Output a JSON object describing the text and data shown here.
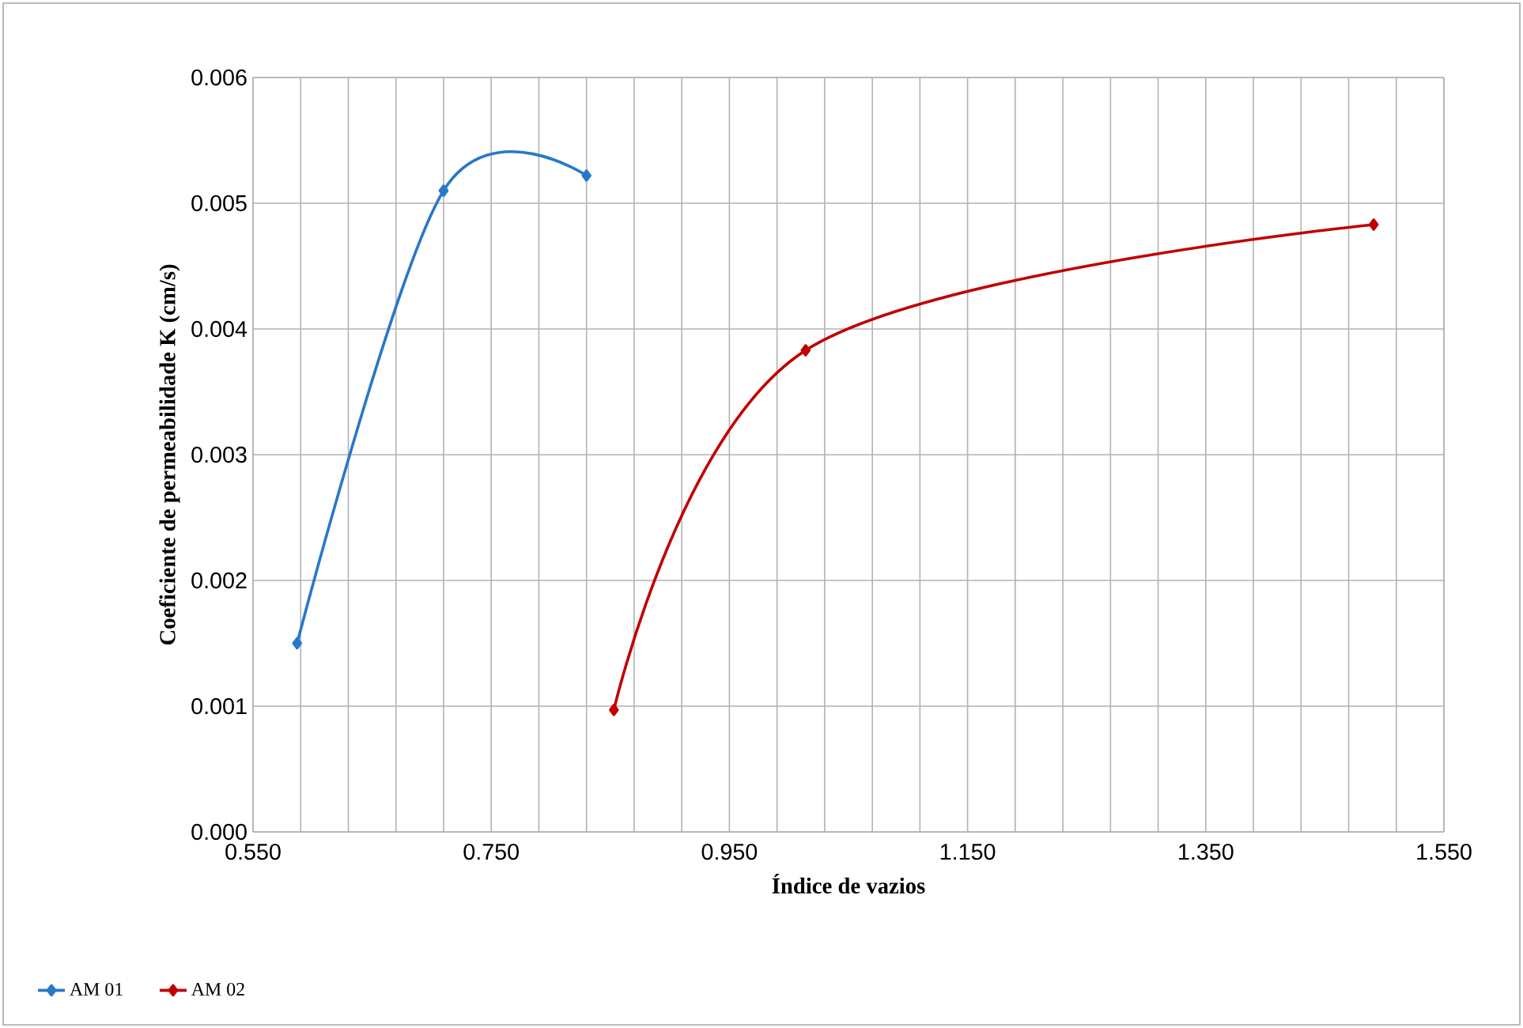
{
  "chart_data": {
    "type": "line",
    "xlabel": "Índice de vazios",
    "ylabel": "Coeficiente de permeabilidade K (cm/s)",
    "series": [
      {
        "name": "AM 01",
        "color": "#2878c8",
        "x": [
          0.587,
          0.71,
          0.83
        ],
        "values": [
          0.0015,
          0.0051,
          0.00522
        ]
      },
      {
        "name": "AM 02",
        "color": "#c00000",
        "x": [
          0.853,
          1.014,
          1.491
        ],
        "values": [
          0.00097,
          0.00383,
          0.00483
        ]
      }
    ],
    "xlim": [
      0.55,
      1.55
    ],
    "ylim": [
      0,
      0.006
    ],
    "xticks": [
      {
        "value": 0.55,
        "label": "0.550"
      },
      {
        "value": 0.75,
        "label": "0.750"
      },
      {
        "value": 0.95,
        "label": "0.950"
      },
      {
        "value": 1.15,
        "label": "1.150"
      },
      {
        "value": 1.35,
        "label": "1.350"
      },
      {
        "value": 1.55,
        "label": "1.550"
      }
    ],
    "yticks": [
      {
        "value": 0,
        "label": "0.000"
      },
      {
        "value": 0.001,
        "label": "0.001"
      },
      {
        "value": 0.002,
        "label": "0.002"
      },
      {
        "value": 0.003,
        "label": "0.003"
      },
      {
        "value": 0.004,
        "label": "0.004"
      },
      {
        "value": 0.005,
        "label": "0.005"
      },
      {
        "value": 0.006,
        "label": "0.006"
      }
    ],
    "grid": true,
    "legend": "bottom left",
    "marker": "diamond",
    "line_style": "solid"
  }
}
